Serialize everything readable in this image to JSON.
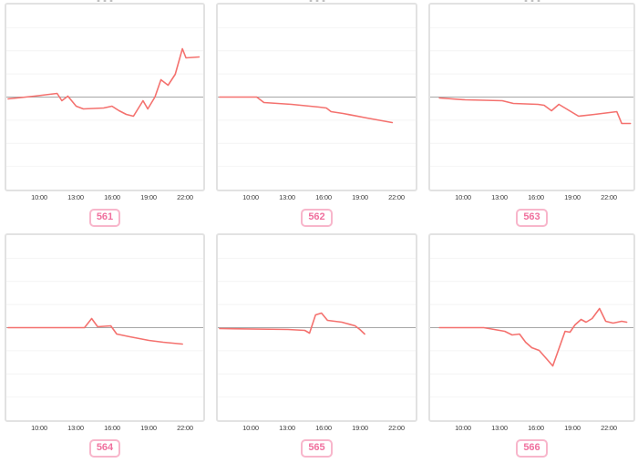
{
  "styles": {
    "line_color": "#f4716e",
    "grid_color": "#f4f4f4",
    "baseline_color": "#a6a6a6",
    "panel_border_color": "#e2e2e2",
    "badge_border_color": "#f8b6cb",
    "badge_text_color": "#f0709e",
    "tick_text_color": "#3d3d3d",
    "background": "#ffffff"
  },
  "axis": {
    "ticks": [
      "10:00",
      "13:00",
      "16:00",
      "19:00",
      "22:00"
    ],
    "tick_hours": [
      10,
      13,
      16,
      19,
      22
    ],
    "note": "x axis is time of day; no y-axis tick labels are shown; gray baseline sits at vertical center of each panel"
  },
  "chart_data": [
    {
      "type": "line",
      "label": "561",
      "legend": "none",
      "grid": "7 faint horizontal lines, center line darker (baseline = 0)",
      "x_unit": "time of day (hours, decimal)",
      "y_unit": "relative offset from baseline (unlabeled axis, estimated px)",
      "points": [
        [
          7.3,
          -2
        ],
        [
          9.5,
          1
        ],
        [
          11.4,
          4
        ],
        [
          11.8,
          -4
        ],
        [
          12.3,
          1
        ],
        [
          13.0,
          -10
        ],
        [
          13.6,
          -13
        ],
        [
          15.3,
          -12
        ],
        [
          16.0,
          -10
        ],
        [
          16.6,
          -15
        ],
        [
          17.2,
          -19
        ],
        [
          17.8,
          -21
        ],
        [
          18.6,
          -4
        ],
        [
          19.0,
          -13
        ],
        [
          19.6,
          0
        ],
        [
          20.1,
          19
        ],
        [
          20.7,
          13
        ],
        [
          21.3,
          25
        ],
        [
          21.9,
          53
        ],
        [
          22.2,
          43
        ],
        [
          23.3,
          44
        ]
      ]
    },
    {
      "type": "line",
      "label": "562",
      "legend": "none",
      "grid": "7 faint horizontal lines, center line darker (baseline = 0)",
      "x_unit": "time of day (hours, decimal)",
      "y_unit": "relative offset from baseline (unlabeled axis, estimated px)",
      "points": [
        [
          7.3,
          0
        ],
        [
          10.4,
          0
        ],
        [
          11.0,
          -6
        ],
        [
          13.3,
          -8
        ],
        [
          15.6,
          -11
        ],
        [
          16.2,
          -12
        ],
        [
          16.6,
          -16
        ],
        [
          17.6,
          -18
        ],
        [
          19.6,
          -23
        ],
        [
          21.7,
          -28
        ]
      ]
    },
    {
      "type": "line",
      "label": "563",
      "legend": "none",
      "grid": "7 faint horizontal lines, center line darker (baseline = 0)",
      "x_unit": "time of day (hours, decimal)",
      "y_unit": "relative offset from baseline (unlabeled axis, estimated px)",
      "points": [
        [
          7.9,
          -1
        ],
        [
          10.0,
          -3
        ],
        [
          13.0,
          -4
        ],
        [
          13.9,
          -7
        ],
        [
          15.9,
          -8
        ],
        [
          16.4,
          -9
        ],
        [
          17.0,
          -15
        ],
        [
          17.6,
          -8
        ],
        [
          19.2,
          -21
        ],
        [
          20.5,
          -19
        ],
        [
          22.3,
          -16
        ],
        [
          22.7,
          -29
        ],
        [
          23.4,
          -29
        ]
      ]
    },
    {
      "type": "line",
      "label": "564",
      "legend": "none",
      "grid": "7 faint horizontal lines, center line darker (baseline = 0)",
      "x_unit": "time of day (hours, decimal)",
      "y_unit": "relative offset from baseline (unlabeled axis, estimated px)",
      "points": [
        [
          7.3,
          0
        ],
        [
          13.7,
          0
        ],
        [
          14.3,
          10
        ],
        [
          14.8,
          1
        ],
        [
          15.9,
          2
        ],
        [
          16.4,
          -7
        ],
        [
          17.5,
          -10
        ],
        [
          19.1,
          -14
        ],
        [
          20.3,
          -16
        ],
        [
          21.9,
          -18
        ]
      ]
    },
    {
      "type": "line",
      "label": "565",
      "legend": "none",
      "grid": "7 faint horizontal lines, center line darker (baseline = 0)",
      "x_unit": "time of day (hours, decimal)",
      "y_unit": "relative offset from baseline (unlabeled axis, estimated px)",
      "points": [
        [
          7.3,
          -1
        ],
        [
          13.0,
          -2
        ],
        [
          14.4,
          -3
        ],
        [
          14.8,
          -6
        ],
        [
          15.3,
          14
        ],
        [
          15.8,
          16
        ],
        [
          16.3,
          8
        ],
        [
          17.5,
          6
        ],
        [
          18.6,
          2
        ],
        [
          19.0,
          -2
        ],
        [
          19.4,
          -7
        ]
      ]
    },
    {
      "type": "line",
      "label": "566",
      "legend": "none",
      "grid": "7 faint horizontal lines, center line darker (baseline = 0)",
      "x_unit": "time of day (hours, decimal)",
      "y_unit": "relative offset from baseline (unlabeled axis, estimated px)",
      "points": [
        [
          7.9,
          0
        ],
        [
          11.5,
          0
        ],
        [
          13.2,
          -4
        ],
        [
          13.8,
          -8
        ],
        [
          14.4,
          -7
        ],
        [
          14.9,
          -16
        ],
        [
          15.4,
          -22
        ],
        [
          16.0,
          -25
        ],
        [
          17.1,
          -42
        ],
        [
          18.1,
          -4
        ],
        [
          18.5,
          -5
        ],
        [
          18.9,
          3
        ],
        [
          19.4,
          9
        ],
        [
          19.8,
          6
        ],
        [
          20.3,
          10
        ],
        [
          20.9,
          21
        ],
        [
          21.4,
          7
        ],
        [
          22.0,
          5
        ],
        [
          22.7,
          7
        ],
        [
          23.1,
          6
        ]
      ]
    }
  ]
}
